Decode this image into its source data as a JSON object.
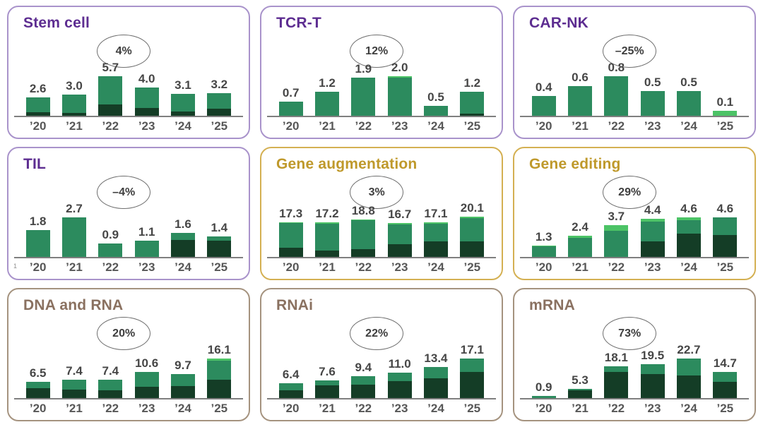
{
  "colors": {
    "bar_dark": "#143d26",
    "bar_mid": "#2c8b5e",
    "bar_light": "#4cc366",
    "purple_title": "#5d2d91",
    "purple_border": "#a993cb",
    "gold_title": "#bf992b",
    "gold_border": "#d4b052",
    "brown_title": "#8a7160",
    "brown_border": "#a5937f",
    "axis_color": "#7f7f7f",
    "value_label": "#464646",
    "year_label": "#575757",
    "ellipse_border": "#6e6e6e",
    "ellipse_text": "#3e3e3e"
  },
  "chart_data": [
    {
      "type": "bar",
      "stacked": true,
      "title": "Stem cell",
      "theme": "purple",
      "growth_label": "4%",
      "footnote": "",
      "categories": [
        "’20",
        "’21",
        "’22",
        "’23",
        "’24",
        "’25"
      ],
      "totals": [
        2.6,
        3.0,
        5.7,
        4.0,
        3.1,
        3.2
      ],
      "bar_labels": [
        "2.6",
        "3.0",
        "5.7",
        "4.0",
        "3.1",
        "3.2"
      ],
      "series": [
        {
          "name": "dark-green",
          "values": [
            0.5,
            0.4,
            1.6,
            1.1,
            0.55,
            0.95
          ]
        },
        {
          "name": "mid-green",
          "values": [
            2.1,
            2.6,
            4.1,
            2.9,
            2.55,
            2.25
          ]
        },
        {
          "name": "light-green",
          "values": [
            0,
            0,
            0,
            0,
            0,
            0
          ]
        }
      ]
    },
    {
      "type": "bar",
      "stacked": true,
      "title": "TCR-T",
      "theme": "purple",
      "growth_label": "12%",
      "footnote": "",
      "categories": [
        "’20",
        "’21",
        "’22",
        "’23",
        "’24",
        "’25"
      ],
      "totals": [
        0.7,
        1.2,
        1.9,
        2.0,
        0.5,
        1.2
      ],
      "bar_labels": [
        "0.7",
        "1.2",
        "1.9",
        "2.0",
        "0.5",
        "1.2"
      ],
      "series": [
        {
          "name": "dark-green",
          "values": [
            0,
            0,
            0,
            0,
            0,
            0.1
          ]
        },
        {
          "name": "mid-green",
          "values": [
            0.7,
            1.2,
            1.9,
            1.9,
            0.5,
            1.1
          ]
        },
        {
          "name": "light-green",
          "values": [
            0,
            0,
            0,
            0.1,
            0,
            0
          ]
        }
      ]
    },
    {
      "type": "bar",
      "stacked": true,
      "title": "CAR-NK",
      "theme": "purple",
      "growth_label": "–25%",
      "footnote": "",
      "categories": [
        "’20",
        "’21",
        "’22",
        "’23",
        "’24",
        "’25"
      ],
      "totals": [
        0.4,
        0.6,
        0.8,
        0.5,
        0.5,
        0.1
      ],
      "bar_labels": [
        "0.4",
        "0.6",
        "0.8",
        "0.5",
        "0.5",
        "0.1"
      ],
      "series": [
        {
          "name": "dark-green",
          "values": [
            0,
            0,
            0,
            0,
            0,
            0
          ]
        },
        {
          "name": "mid-green",
          "values": [
            0.4,
            0.6,
            0.8,
            0.5,
            0.5,
            0
          ]
        },
        {
          "name": "light-green",
          "values": [
            0,
            0,
            0,
            0,
            0,
            0.1
          ]
        }
      ]
    },
    {
      "type": "bar",
      "stacked": true,
      "title": "TIL",
      "theme": "purple",
      "growth_label": "–4%",
      "footnote": "1",
      "categories": [
        "’20",
        "’21",
        "’22",
        "’23",
        "’24",
        "’25"
      ],
      "totals": [
        1.8,
        2.7,
        0.9,
        1.1,
        1.6,
        1.4
      ],
      "bar_labels": [
        "1.8",
        "2.7",
        "0.9",
        "1.1",
        "1.6",
        "1.4"
      ],
      "series": [
        {
          "name": "dark-green",
          "values": [
            0,
            0,
            0,
            0,
            1.15,
            1.1
          ]
        },
        {
          "name": "mid-green",
          "values": [
            1.8,
            2.7,
            0.9,
            1.1,
            0.45,
            0.3
          ]
        },
        {
          "name": "light-green",
          "values": [
            0,
            0,
            0,
            0,
            0,
            0
          ]
        }
      ]
    },
    {
      "type": "bar",
      "stacked": true,
      "title": "Gene augmentation",
      "theme": "gold",
      "growth_label": "3%",
      "footnote": "",
      "categories": [
        "’20",
        "’21",
        "’22",
        "’23",
        "’24",
        "’25"
      ],
      "totals": [
        17.3,
        17.2,
        18.8,
        16.7,
        17.1,
        20.1
      ],
      "bar_labels": [
        "17.3",
        "17.2",
        "18.8",
        "16.7",
        "17.1",
        "20.1"
      ],
      "series": [
        {
          "name": "dark-green",
          "values": [
            4.6,
            3.2,
            3.9,
            6.3,
            7.9,
            7.8
          ]
        },
        {
          "name": "mid-green",
          "values": [
            12.4,
            13.7,
            14.6,
            10.1,
            8.9,
            12.0
          ]
        },
        {
          "name": "light-green",
          "values": [
            0.3,
            0.3,
            0.3,
            0.3,
            0.3,
            0.3
          ]
        }
      ]
    },
    {
      "type": "bar",
      "stacked": true,
      "title": "Gene editing",
      "theme": "gold",
      "growth_label": "29%",
      "footnote": "",
      "categories": [
        "’20",
        "’21",
        "’22",
        "’23",
        "’24",
        "’25"
      ],
      "totals": [
        1.3,
        2.4,
        3.7,
        4.4,
        4.6,
        4.6
      ],
      "bar_labels": [
        "1.3",
        "2.4",
        "3.7",
        "4.4",
        "4.6",
        "4.6"
      ],
      "series": [
        {
          "name": "dark-green",
          "values": [
            0,
            0,
            0,
            1.8,
            2.7,
            2.5
          ]
        },
        {
          "name": "mid-green",
          "values": [
            1.2,
            2.2,
            3.0,
            2.3,
            1.55,
            2.1
          ]
        },
        {
          "name": "light-green",
          "values": [
            0.1,
            0.2,
            0.7,
            0.3,
            0.35,
            0
          ]
        }
      ]
    },
    {
      "type": "bar",
      "stacked": true,
      "title": "DNA and RNA",
      "theme": "brown",
      "growth_label": "20%",
      "footnote": "",
      "categories": [
        "’20",
        "’21",
        "’22",
        "’23",
        "’24",
        "’25"
      ],
      "totals": [
        6.5,
        7.4,
        7.4,
        10.6,
        9.7,
        16.1
      ],
      "bar_labels": [
        "6.5",
        "7.4",
        "7.4",
        "10.6",
        "9.7",
        "16.1"
      ],
      "series": [
        {
          "name": "dark-green",
          "values": [
            3.8,
            3.3,
            3.0,
            4.5,
            4.9,
            7.4
          ]
        },
        {
          "name": "mid-green",
          "values": [
            2.7,
            4.1,
            4.4,
            6.1,
            4.8,
            7.7
          ]
        },
        {
          "name": "light-green",
          "values": [
            0,
            0,
            0,
            0,
            0,
            1.0
          ]
        }
      ]
    },
    {
      "type": "bar",
      "stacked": true,
      "title": "RNAi",
      "theme": "brown",
      "growth_label": "22%",
      "footnote": "",
      "categories": [
        "’20",
        "’21",
        "’22",
        "’23",
        "’24",
        "’25"
      ],
      "totals": [
        6.4,
        7.6,
        9.4,
        11.0,
        13.4,
        17.1
      ],
      "bar_labels": [
        "6.4",
        "7.6",
        "9.4",
        "11.0",
        "13.4",
        "17.1"
      ],
      "series": [
        {
          "name": "dark-green",
          "values": [
            3.2,
            5.4,
            5.8,
            7.3,
            8.4,
            11.3
          ]
        },
        {
          "name": "mid-green",
          "values": [
            3.2,
            2.2,
            3.6,
            3.7,
            5.0,
            5.8
          ]
        },
        {
          "name": "light-green",
          "values": [
            0,
            0,
            0,
            0,
            0,
            0
          ]
        }
      ]
    },
    {
      "type": "bar",
      "stacked": true,
      "title": "mRNA",
      "theme": "brown",
      "growth_label": "73%",
      "footnote": "",
      "categories": [
        "’20",
        "’21",
        "’22",
        "’23",
        "’24",
        "’25"
      ],
      "totals": [
        0.9,
        5.3,
        18.1,
        19.5,
        22.7,
        14.7
      ],
      "bar_labels": [
        "0.9",
        "5.3",
        "18.1",
        "19.5",
        "22.7",
        "14.7"
      ],
      "series": [
        {
          "name": "dark-green",
          "values": [
            0,
            4.5,
            14.7,
            13.7,
            12.8,
            9.1
          ]
        },
        {
          "name": "mid-green",
          "values": [
            0.9,
            0.8,
            3.4,
            5.8,
            9.9,
            5.6
          ]
        },
        {
          "name": "light-green",
          "values": [
            0,
            0,
            0,
            0,
            0,
            0
          ]
        }
      ]
    }
  ]
}
